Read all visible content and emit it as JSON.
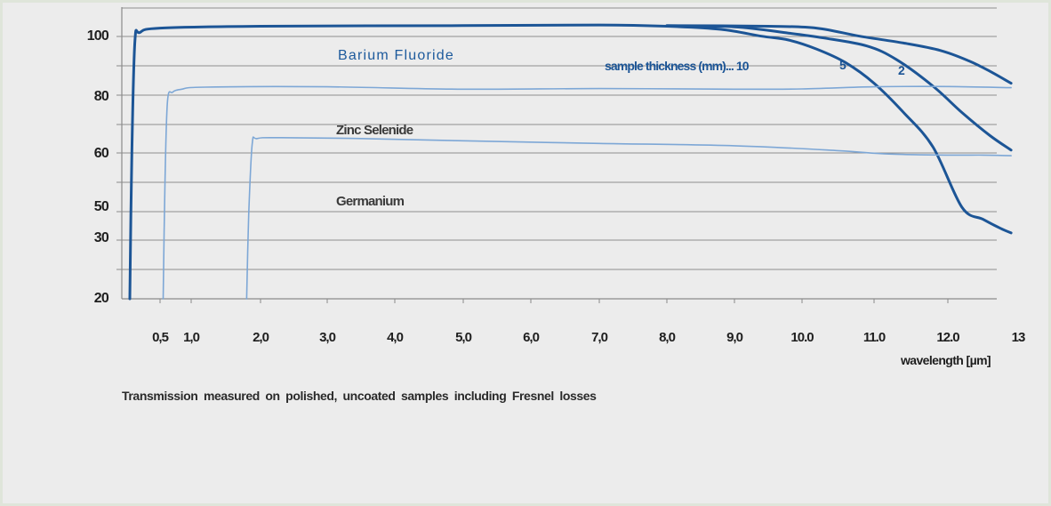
{
  "chart_data": {
    "type": "line",
    "xlabel": "wavelength [µm]",
    "y_ticks": [
      {
        "value": 100,
        "label": "100"
      },
      {
        "value": 80,
        "label": "80"
      },
      {
        "value": 60,
        "label": "60"
      },
      {
        "value": 50,
        "label": "50"
      },
      {
        "value": 30,
        "label": "30"
      },
      {
        "value": 20,
        "label": "20"
      }
    ],
    "x_ticks": [
      {
        "value": 0.5,
        "label": "0,5"
      },
      {
        "value": 1.0,
        "label": "1,0"
      },
      {
        "value": 2.0,
        "label": "2,0"
      },
      {
        "value": 3.0,
        "label": "3,0"
      },
      {
        "value": 4.0,
        "label": "4,0"
      },
      {
        "value": 5.0,
        "label": "5,0"
      },
      {
        "value": 6.0,
        "label": "6,0"
      },
      {
        "value": 7.0,
        "label": "7,0"
      },
      {
        "value": 8.0,
        "label": "8,0"
      },
      {
        "value": 9.0,
        "label": "9,0"
      },
      {
        "value": 10.0,
        "label": "10.0"
      },
      {
        "value": 11.0,
        "label": "11.0"
      },
      {
        "value": 12.0,
        "label": "12.0"
      },
      {
        "value": 13.0,
        "label": "13"
      }
    ],
    "grid": true,
    "series": [
      {
        "name": "Barium Fluoride",
        "thickness_label": "10",
        "color": "#1c5596",
        "width": "thick",
        "points": [
          [
            0.2,
            20
          ],
          [
            0.22,
            60
          ],
          [
            0.25,
            98
          ],
          [
            0.3,
            100.5
          ],
          [
            0.5,
            101.2
          ],
          [
            2.0,
            101.5
          ],
          [
            5.0,
            101.6
          ],
          [
            7.0,
            101.7
          ],
          [
            8.0,
            101.5
          ],
          [
            8.8,
            101
          ],
          [
            9.4,
            99.8
          ],
          [
            9.8,
            98.5
          ],
          [
            10.2,
            95.5
          ],
          [
            10.6,
            91
          ],
          [
            11.0,
            84
          ],
          [
            11.4,
            74
          ],
          [
            11.8,
            62
          ],
          [
            12.2,
            50
          ],
          [
            12.5,
            42
          ],
          [
            12.75,
            36
          ],
          [
            12.9,
            33
          ]
        ]
      },
      {
        "name": "Barium Fluoride",
        "thickness_label": "5",
        "color": "#1c5596",
        "width": "thick",
        "points": [
          [
            8.0,
            101.5
          ],
          [
            9.0,
            101.4
          ],
          [
            9.8,
            100.4
          ],
          [
            10.3,
            99.2
          ],
          [
            10.9,
            96.5
          ],
          [
            11.3,
            92
          ],
          [
            11.8,
            83
          ],
          [
            12.2,
            74
          ],
          [
            12.6,
            66
          ],
          [
            12.9,
            61
          ]
        ]
      },
      {
        "name": "Barium Fluoride",
        "thickness_label": "2",
        "color": "#1c5596",
        "width": "thick",
        "points": [
          [
            8.0,
            101.6
          ],
          [
            9.5,
            101.5
          ],
          [
            10.2,
            101.2
          ],
          [
            10.8,
            99.8
          ],
          [
            11.4,
            97.5
          ],
          [
            11.9,
            95
          ],
          [
            12.3,
            91.5
          ],
          [
            12.6,
            88
          ],
          [
            12.9,
            84
          ]
        ]
      },
      {
        "name": "Zinc Selenide",
        "color": "#7da7d6",
        "width": "thin",
        "points": [
          [
            0.55,
            20
          ],
          [
            0.58,
            55
          ],
          [
            0.62,
            78
          ],
          [
            0.7,
            81
          ],
          [
            0.85,
            82
          ],
          [
            1.2,
            82.7
          ],
          [
            3.0,
            82.8
          ],
          [
            5.0,
            82
          ],
          [
            7.0,
            82.2
          ],
          [
            9.0,
            82
          ],
          [
            10.0,
            82.1
          ],
          [
            11.0,
            82.8
          ],
          [
            12.0,
            82.9
          ],
          [
            12.9,
            82.5
          ]
        ]
      },
      {
        "name": "Germanium",
        "color": "#7da7d6",
        "width": "thin",
        "points": [
          [
            1.8,
            20
          ],
          [
            1.83,
            45
          ],
          [
            1.88,
            63
          ],
          [
            1.95,
            65
          ],
          [
            2.3,
            65.3
          ],
          [
            3.5,
            65
          ],
          [
            5.0,
            64.2
          ],
          [
            7.0,
            63.3
          ],
          [
            9.0,
            62.5
          ],
          [
            10.5,
            60.8
          ],
          [
            11.2,
            59.8
          ],
          [
            12.0,
            59.6
          ],
          [
            12.5,
            59.6
          ],
          [
            12.9,
            59.5
          ]
        ]
      }
    ],
    "annotations": {
      "barium_fluoride": "Barium  Fluoride",
      "zinc_selenide": "Zinc Selenide",
      "germanium": "Germanium",
      "sample_thickness": "sample thickness (mm)...  10",
      "thickness_5": "5",
      "thickness_2": "2"
    }
  },
  "caption": "Transmission  measured  on  polished,  uncoated  samples  including  Fresnel  losses",
  "colors": {
    "background": "#ececec",
    "grid": "#8e8e8e",
    "barium_fluoride": "#1c5596",
    "zinc_selenide": "#7da7d6",
    "germanium": "#7da7d6"
  }
}
